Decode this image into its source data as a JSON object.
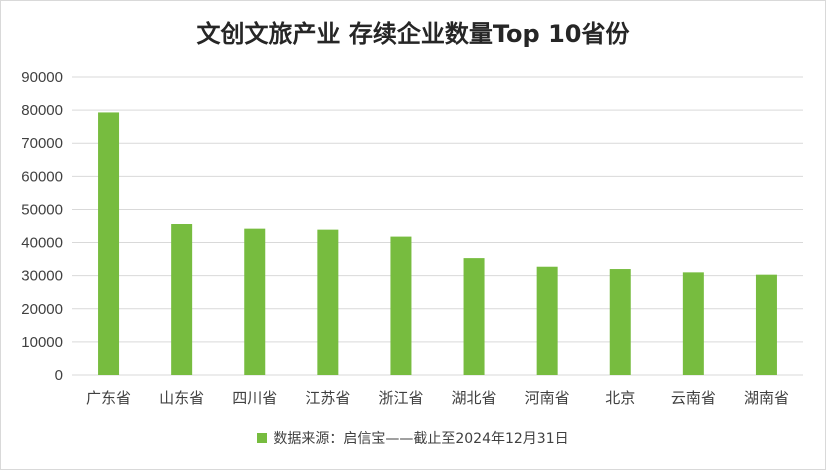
{
  "chart_data": {
    "type": "bar",
    "title": "文创文旅产业 存续企业数量Top 10省份",
    "categories": [
      "广东省",
      "山东省",
      "四川省",
      "江苏省",
      "浙江省",
      "湖北省",
      "河南省",
      "北京",
      "云南省",
      "湖南省"
    ],
    "series": [
      {
        "name": "数据来源：启信宝——截止至2024年12月31日",
        "values": [
          79300,
          45600,
          44200,
          43900,
          41800,
          35300,
          32700,
          32000,
          31000,
          30300
        ],
        "color": "#77bc3f"
      }
    ],
    "yticks": [
      "0",
      "10000",
      "20000",
      "30000",
      "40000",
      "50000",
      "60000",
      "70000",
      "80000",
      "90000"
    ],
    "ylim": [
      0,
      90000
    ],
    "grid": true,
    "legend_position": "bottom"
  }
}
